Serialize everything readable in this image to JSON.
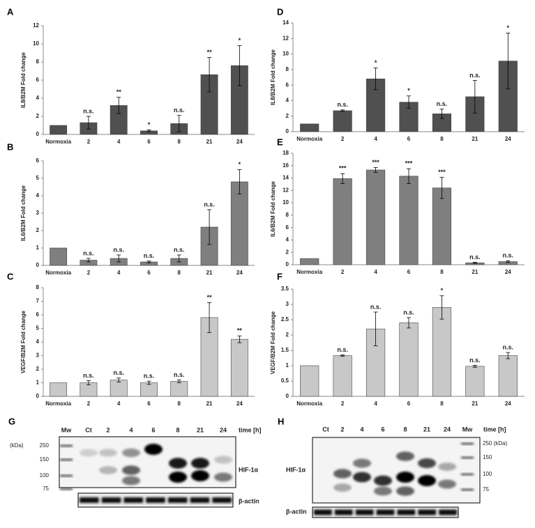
{
  "chart_data": [
    {
      "type": "bar",
      "panel": "A",
      "y_label": "IL8/B2M Fold change",
      "color": "#505050",
      "categories": [
        "Normoxia",
        "2",
        "4",
        "6",
        "8",
        "21",
        "24"
      ],
      "values": [
        1,
        1.3,
        3.2,
        0.4,
        1.2,
        6.6,
        7.6
      ],
      "errors": [
        null,
        0.7,
        0.9,
        0.1,
        0.9,
        1.9,
        2.2
      ],
      "annotations": [
        null,
        "n.s.",
        "**",
        "*",
        "n.s.",
        "**",
        "*"
      ],
      "ylim": [
        0,
        12
      ],
      "yticks": [
        0,
        2,
        4,
        6,
        8,
        10,
        12
      ]
    },
    {
      "type": "bar",
      "panel": "B",
      "y_label": "IL6/B2M Fold change",
      "color": "#7f7f7f",
      "categories": [
        "Normoxia",
        "2",
        "4",
        "6",
        "8",
        "21",
        "24"
      ],
      "values": [
        1,
        0.3,
        0.4,
        0.2,
        0.4,
        2.2,
        4.8
      ],
      "errors": [
        null,
        0.1,
        0.2,
        0.05,
        0.2,
        1.0,
        0.7
      ],
      "annotations": [
        null,
        "n.s.",
        "n.s.",
        "n.s.",
        "n.s.",
        "n.s.",
        "*"
      ],
      "ylim": [
        0,
        6
      ],
      "yticks": [
        0,
        1,
        2,
        3,
        4,
        5,
        6
      ]
    },
    {
      "type": "bar",
      "panel": "C",
      "y_label": "VEGF/B2M Fold change",
      "color": "#c8c8c8",
      "categories": [
        "Normoxia",
        "2",
        "4",
        "6",
        "8",
        "21",
        "24"
      ],
      "values": [
        1,
        1.0,
        1.2,
        1.0,
        1.1,
        5.8,
        4.2
      ],
      "errors": [
        null,
        0.15,
        0.15,
        0.12,
        0.1,
        1.1,
        0.25
      ],
      "annotations": [
        null,
        "n.s.",
        "n.s.",
        "n.s.",
        "n.s.",
        "**",
        "**"
      ],
      "ylim": [
        0,
        8
      ],
      "yticks": [
        0,
        1,
        2,
        3,
        4,
        5,
        6,
        7,
        8
      ]
    },
    {
      "type": "bar",
      "panel": "D",
      "y_label": "IL8/B2M Fold change",
      "color": "#505050",
      "categories": [
        "Normoxia",
        "2",
        "4",
        "6",
        "8",
        "21",
        "24"
      ],
      "values": [
        1,
        2.7,
        6.8,
        3.8,
        2.3,
        4.5,
        9.1
      ],
      "errors": [
        null,
        0.1,
        1.4,
        0.8,
        0.6,
        2.1,
        3.6
      ],
      "annotations": [
        null,
        "n.s.",
        "*",
        "*",
        "n.s.",
        "n.s.",
        "*"
      ],
      "ylim": [
        0,
        14
      ],
      "yticks": [
        0,
        2,
        4,
        6,
        8,
        10,
        12,
        14
      ]
    },
    {
      "type": "bar",
      "panel": "E",
      "y_label": "IL6/B2M Fold change",
      "color": "#7f7f7f",
      "categories": [
        "Normoxia",
        "2",
        "4",
        "6",
        "8",
        "21",
        "24"
      ],
      "values": [
        1,
        13.9,
        15.3,
        14.3,
        12.4,
        0.3,
        0.5
      ],
      "errors": [
        null,
        0.8,
        0.4,
        1.2,
        1.7,
        0.1,
        0.15
      ],
      "annotations": [
        null,
        "***",
        "***",
        "***",
        "***",
        "n.s.",
        "n.s."
      ],
      "ylim": [
        0,
        18
      ],
      "yticks": [
        0,
        2,
        4,
        6,
        8,
        10,
        12,
        14,
        16,
        18
      ]
    },
    {
      "type": "bar",
      "panel": "F",
      "y_label": "VEGF/B2M Fold change",
      "color": "#c8c8c8",
      "categories": [
        "Normoxia",
        "2",
        "4",
        "6",
        "8",
        "21",
        "24"
      ],
      "values": [
        1,
        1.33,
        2.2,
        2.4,
        2.9,
        0.98,
        1.33
      ],
      "errors": [
        null,
        0.02,
        0.55,
        0.17,
        0.38,
        0.03,
        0.1
      ],
      "annotations": [
        null,
        "n.s.",
        "n.s.",
        "n.s.",
        "*",
        "n.s.",
        "n.s."
      ],
      "ylim": [
        0,
        3.5
      ],
      "yticks": [
        0,
        0.5,
        1,
        1.5,
        2,
        2.5,
        3,
        3.5
      ]
    }
  ],
  "blots": [
    {
      "panel": "G",
      "lanes": [
        "Mw",
        "Ct",
        "2",
        "4",
        "6",
        "8",
        "21",
        "24"
      ],
      "time_label": "time [h]",
      "kda_label": "(kDa)",
      "markers": [
        "250",
        "150",
        "100",
        "75"
      ],
      "protein": "HIF-1α",
      "loading": "β-actin"
    },
    {
      "panel": "H",
      "lanes": [
        "Ct",
        "2",
        "4",
        "6",
        "8",
        "21",
        "24",
        "Mw"
      ],
      "time_label": "time [h]",
      "markers": [
        "250 (kDa)",
        "150",
        "100",
        "75"
      ],
      "protein": "HIF-1α",
      "loading": "β-actin"
    }
  ]
}
